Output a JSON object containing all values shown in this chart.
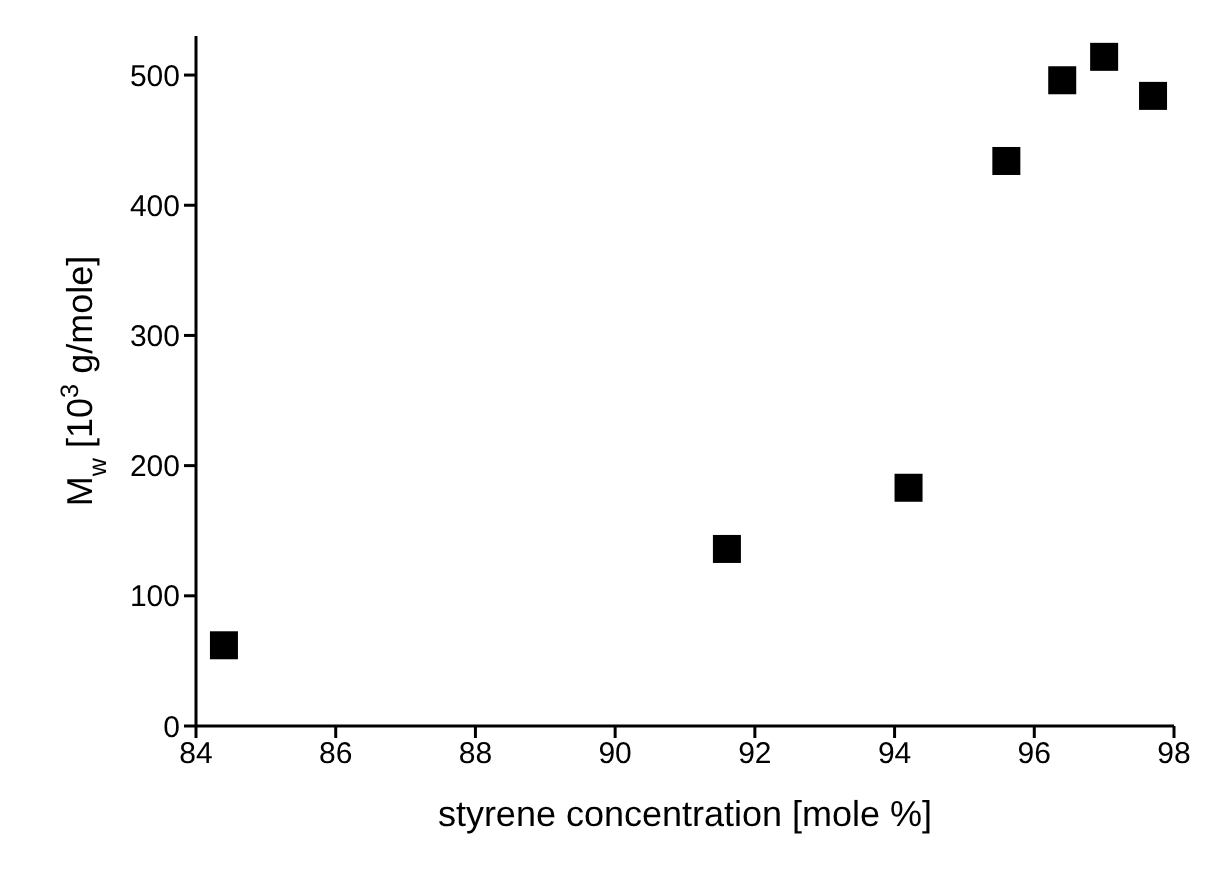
{
  "chart_data": {
    "type": "scatter",
    "xlabel": "styrene concentration [mole %]",
    "ylabel": "M$_{w}$  [10$^{3}$ g/mole]",
    "x": [
      84.4,
      91.6,
      94.2,
      95.6,
      96.4,
      97.0,
      97.7
    ],
    "series": [
      {
        "color": "#000000",
        "values": [
          62,
          136,
          183,
          434,
          496,
          514,
          484
        ]
      }
    ],
    "marker": "square",
    "xlim": [
      84,
      98
    ],
    "xticks": [
      84,
      86,
      88,
      90,
      92,
      94,
      96,
      98
    ],
    "ylim": [
      0,
      530
    ],
    "yticks": [
      0,
      100,
      200,
      300,
      400,
      500
    ],
    "grid": false,
    "legend": false
  }
}
